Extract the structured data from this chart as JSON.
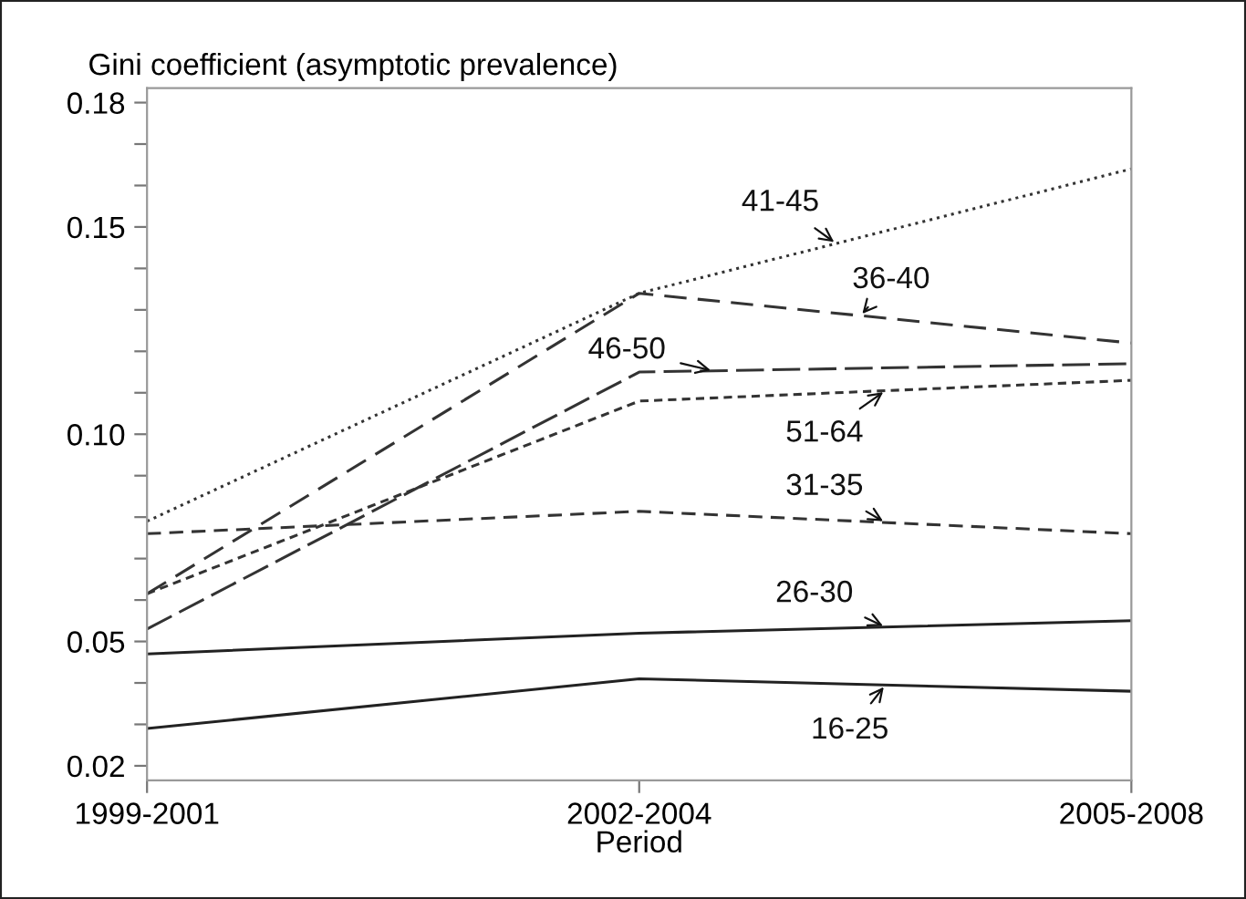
{
  "chart_data": {
    "type": "line",
    "ylabel": "Gini coefficient (asymptotic prevalence)",
    "xlabel": "Period",
    "categories": [
      "1999-2001",
      "2002-2004",
      "2005-2008"
    ],
    "series": [
      {
        "name": "41-45",
        "color": "#333333",
        "line_style": "dotted",
        "values": [
          0.079,
          0.134,
          0.164
        ]
      },
      {
        "name": "36-40",
        "color": "#333333",
        "line_style": "dashed",
        "values": [
          0.0615,
          0.134,
          0.122
        ]
      },
      {
        "name": "46-50",
        "color": "#333333",
        "line_style": "dashed",
        "values": [
          0.053,
          0.115,
          0.117
        ]
      },
      {
        "name": "51-64",
        "color": "#333333",
        "line_style": "dashed",
        "values": [
          0.0615,
          0.108,
          0.113
        ]
      },
      {
        "name": "31-35",
        "color": "#333333",
        "line_style": "dashed",
        "values": [
          0.076,
          0.0814,
          0.076
        ]
      },
      {
        "name": "26-30",
        "color": "#222222",
        "line_style": "solid",
        "values": [
          0.047,
          0.052,
          0.055
        ]
      },
      {
        "name": "16-25",
        "color": "#222222",
        "line_style": "solid",
        "values": [
          0.029,
          0.041,
          0.038
        ]
      }
    ],
    "ylim": [
      0.0165,
      0.1835
    ],
    "yticks": [
      0.02,
      {
        "value": 0.03,
        "label": null
      },
      {
        "value": 0.04,
        "label": null
      },
      0.05,
      {
        "value": 0.06,
        "label": null
      },
      {
        "value": 0.07,
        "label": null
      },
      {
        "value": 0.08,
        "label": null
      },
      {
        "value": 0.09,
        "label": null
      },
      {
        "value": 0.1,
        "label": "0.10"
      },
      {
        "value": 0.11,
        "label": null
      },
      {
        "value": 0.12,
        "label": null
      },
      {
        "value": 0.13,
        "label": null
      },
      {
        "value": 0.14,
        "label": null
      },
      0.15,
      {
        "value": 0.16,
        "label": null
      },
      {
        "value": 0.17,
        "label": null
      },
      0.18
    ],
    "grid": false,
    "legend": false,
    "marker": "none"
  }
}
